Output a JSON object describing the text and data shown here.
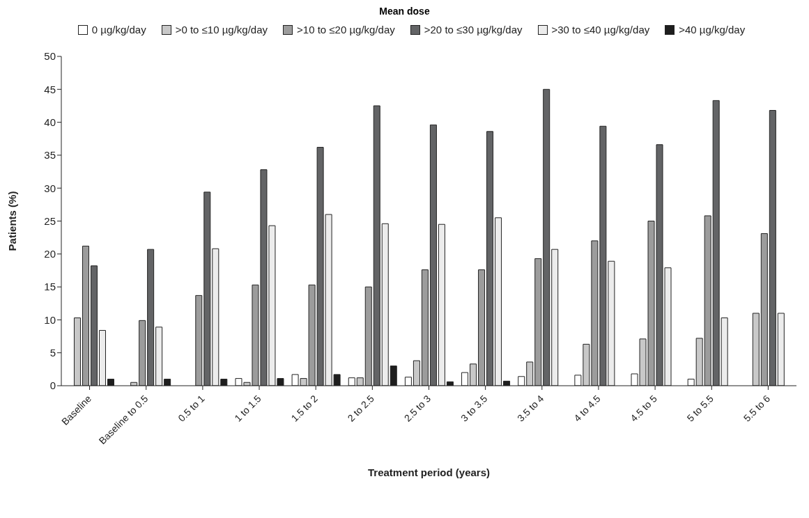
{
  "chart_data": {
    "type": "bar",
    "title": "Mean dose",
    "xlabel": "Treatment period (years)",
    "ylabel": "Patients (%)",
    "categories": [
      "Baseline",
      "Baseline to 0.5",
      "0.5 to 1",
      "1 to 1.5",
      "1.5 to 2",
      "2 to 2.5",
      "2.5 to 3",
      "3 to 3.5",
      "3.5 to 4",
      "4 to 4.5",
      "4.5 to 5",
      "5 to 5.5",
      "5.5 to 6"
    ],
    "series": [
      {
        "name": "0 µg/kg/day",
        "color": "#ffffff",
        "values": [
          null,
          null,
          null,
          1.1,
          1.7,
          1.2,
          1.3,
          2.0,
          1.4,
          1.6,
          1.8,
          1.0,
          null
        ]
      },
      {
        "name": ">0 to ≤10 µg/kg/day",
        "color": "#c8c8c8",
        "values": [
          10.3,
          0.5,
          null,
          0.5,
          1.1,
          1.2,
          3.8,
          3.3,
          3.6,
          6.3,
          7.1,
          7.2,
          11.0
        ]
      },
      {
        "name": ">10 to ≤20 µg/kg/day",
        "color": "#9c9c9c",
        "values": [
          21.2,
          9.9,
          13.7,
          15.3,
          15.3,
          15.0,
          17.6,
          17.6,
          19.3,
          22.0,
          25.0,
          25.8,
          23.1
        ]
      },
      {
        "name": ">20 to ≤30 µg/kg/day",
        "color": "#636466",
        "values": [
          18.2,
          20.7,
          29.4,
          32.8,
          36.2,
          42.5,
          39.6,
          38.6,
          45.0,
          39.4,
          36.6,
          43.3,
          41.8
        ]
      },
      {
        "name": ">30 to ≤40 µg/kg/day",
        "color": "#ececec",
        "values": [
          8.4,
          8.9,
          20.8,
          24.3,
          26.0,
          24.6,
          24.5,
          25.5,
          20.7,
          18.9,
          17.9,
          10.3,
          11.0
        ]
      },
      {
        "name": ">40 µg/kg/day",
        "color": "#1e1e1e",
        "values": [
          1.0,
          1.0,
          1.0,
          1.1,
          1.7,
          3.0,
          0.6,
          0.7,
          null,
          null,
          null,
          null,
          null
        ]
      }
    ],
    "ylim": [
      0,
      50
    ],
    "yticks": [
      0,
      5,
      10,
      15,
      20,
      25,
      30,
      35,
      40,
      45,
      50
    ],
    "grid": false,
    "legend": "top"
  }
}
